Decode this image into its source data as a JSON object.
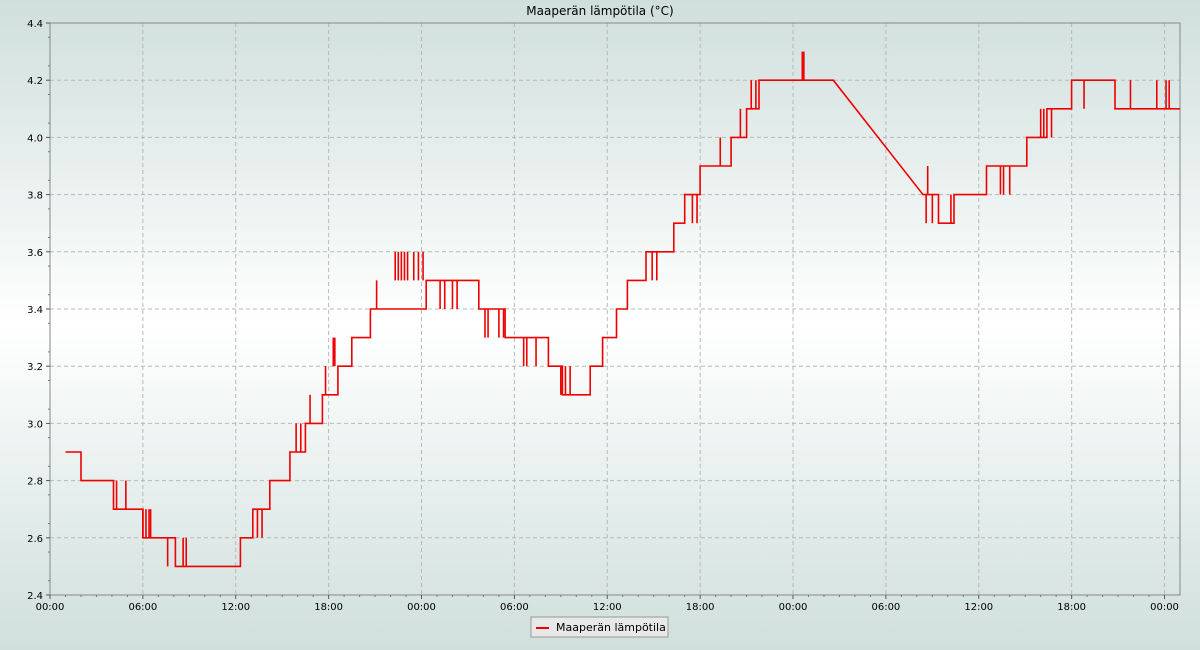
{
  "chart_data": {
    "type": "line",
    "title": "Maaperän lämpötila (°C)",
    "xlabel": "",
    "ylabel": "",
    "ylim": [
      2.4,
      4.4
    ],
    "xlim": [
      "00:00",
      "+73h"
    ],
    "grid": true,
    "legend_position": "bottom-center",
    "y_ticks": [
      "2.4",
      "2.6",
      "2.8",
      "3.0",
      "3.2",
      "3.4",
      "3.6",
      "3.8",
      "4.0",
      "4.2",
      "4.4"
    ],
    "x_ticks": [
      "00:00",
      "06:00",
      "12:00",
      "18:00",
      "00:00",
      "06:00",
      "12:00",
      "18:00",
      "00:00",
      "06:00",
      "12:00",
      "18:00",
      "00:00"
    ],
    "series": [
      {
        "name": "Maaperän lämpötila",
        "color": "#ee0000",
        "x_hours": [
          1.0,
          2.0,
          2.0,
          4.1,
          4.1,
          6.0,
          6.0,
          6.6,
          6.6,
          7.6,
          8.1,
          8.1,
          12.3,
          12.3,
          13.1,
          13.1,
          14.2,
          14.2,
          15.5,
          15.5,
          16.5,
          16.5,
          17.6,
          17.6,
          18.6,
          18.6,
          19.5,
          19.5,
          20.7,
          20.7,
          24.3,
          24.3,
          25.6,
          25.6,
          27.7,
          27.7,
          29.4,
          29.4,
          32.2,
          32.2,
          33.1,
          33.1,
          34.0,
          34.0,
          34.9,
          34.9,
          35.7,
          35.7,
          36.6,
          36.6,
          37.3,
          37.3,
          38.5,
          38.5,
          40.3,
          40.3,
          41.0,
          41.0,
          42.0,
          42.0,
          44.0,
          44.0,
          45.0,
          45.0,
          45.8,
          45.8,
          47.4,
          47.4,
          48.9,
          48.9,
          49.3,
          49.3,
          50.6,
          56.4,
          56.4,
          57.4,
          57.4,
          58.4,
          58.4,
          60.5,
          60.5,
          61.8,
          61.8,
          63.1,
          63.1,
          64.4,
          64.4,
          66.0,
          66.0,
          68.8,
          68.8,
          70.2,
          70.2,
          73.0
        ],
        "y_values": [
          2.9,
          2.9,
          2.8,
          2.8,
          2.7,
          2.7,
          2.6,
          2.6,
          2.6,
          2.6,
          2.6,
          2.5,
          2.5,
          2.6,
          2.6,
          2.7,
          2.7,
          2.8,
          2.8,
          2.9,
          2.9,
          3.0,
          3.0,
          3.1,
          3.1,
          3.2,
          3.2,
          3.3,
          3.3,
          3.4,
          3.4,
          3.5,
          3.5,
          3.5,
          3.5,
          3.4,
          3.4,
          3.3,
          3.3,
          3.2,
          3.2,
          3.1,
          3.1,
          3.1,
          3.1,
          3.2,
          3.2,
          3.3,
          3.3,
          3.4,
          3.4,
          3.5,
          3.5,
          3.6,
          3.6,
          3.7,
          3.7,
          3.8,
          3.8,
          3.9,
          3.9,
          4.0,
          4.0,
          4.1,
          4.1,
          4.2,
          4.2,
          4.2,
          4.2,
          4.2,
          4.2,
          4.2,
          4.2,
          3.8,
          3.8,
          3.8,
          3.7,
          3.7,
          3.8,
          3.8,
          3.9,
          3.9,
          3.9,
          3.9,
          4.0,
          4.0,
          4.1,
          4.1,
          4.2,
          4.2,
          4.1,
          4.1,
          4.1,
          4.1
        ],
        "spikes": [
          {
            "x": 4.3,
            "y1": 2.7,
            "y2": 2.8
          },
          {
            "x": 4.9,
            "y1": 2.7,
            "y2": 2.8
          },
          {
            "x": 6.0,
            "y1": 2.6,
            "y2": 2.7
          },
          {
            "x": 6.2,
            "y1": 2.6,
            "y2": 2.7
          },
          {
            "x": 6.4,
            "y1": 2.6,
            "y2": 2.7
          },
          {
            "x": 6.5,
            "y1": 2.6,
            "y2": 2.7
          },
          {
            "x": 7.6,
            "y1": 2.5,
            "y2": 2.6
          },
          {
            "x": 8.6,
            "y1": 2.5,
            "y2": 2.6
          },
          {
            "x": 8.8,
            "y1": 2.5,
            "y2": 2.6
          },
          {
            "x": 13.4,
            "y1": 2.6,
            "y2": 2.7
          },
          {
            "x": 13.7,
            "y1": 2.6,
            "y2": 2.7
          },
          {
            "x": 15.9,
            "y1": 2.9,
            "y2": 3.0
          },
          {
            "x": 16.2,
            "y1": 2.9,
            "y2": 3.0
          },
          {
            "x": 16.8,
            "y1": 3.0,
            "y2": 3.1
          },
          {
            "x": 17.8,
            "y1": 3.1,
            "y2": 3.2
          },
          {
            "x": 18.3,
            "y1": 3.2,
            "y2": 3.3
          },
          {
            "x": 18.4,
            "y1": 3.2,
            "y2": 3.3
          },
          {
            "x": 21.1,
            "y1": 3.4,
            "y2": 3.5
          },
          {
            "x": 22.3,
            "y1": 3.5,
            "y2": 3.6
          },
          {
            "x": 22.5,
            "y1": 3.5,
            "y2": 3.6
          },
          {
            "x": 22.7,
            "y1": 3.5,
            "y2": 3.6
          },
          {
            "x": 22.9,
            "y1": 3.5,
            "y2": 3.6
          },
          {
            "x": 23.1,
            "y1": 3.5,
            "y2": 3.6
          },
          {
            "x": 23.5,
            "y1": 3.5,
            "y2": 3.6
          },
          {
            "x": 23.8,
            "y1": 3.5,
            "y2": 3.6
          },
          {
            "x": 24.1,
            "y1": 3.5,
            "y2": 3.6
          },
          {
            "x": 25.2,
            "y1": 3.4,
            "y2": 3.5
          },
          {
            "x": 25.5,
            "y1": 3.4,
            "y2": 3.5
          },
          {
            "x": 26.0,
            "y1": 3.4,
            "y2": 3.5
          },
          {
            "x": 26.3,
            "y1": 3.4,
            "y2": 3.5
          },
          {
            "x": 28.1,
            "y1": 3.3,
            "y2": 3.4
          },
          {
            "x": 28.3,
            "y1": 3.3,
            "y2": 3.4
          },
          {
            "x": 29.0,
            "y1": 3.3,
            "y2": 3.4
          },
          {
            "x": 29.3,
            "y1": 3.3,
            "y2": 3.4
          },
          {
            "x": 30.6,
            "y1": 3.2,
            "y2": 3.3
          },
          {
            "x": 30.8,
            "y1": 3.2,
            "y2": 3.3
          },
          {
            "x": 31.4,
            "y1": 3.2,
            "y2": 3.3
          },
          {
            "x": 33.0,
            "y1": 3.1,
            "y2": 3.2
          },
          {
            "x": 33.3,
            "y1": 3.1,
            "y2": 3.2
          },
          {
            "x": 33.6,
            "y1": 3.1,
            "y2": 3.2
          },
          {
            "x": 38.9,
            "y1": 3.5,
            "y2": 3.6
          },
          {
            "x": 39.2,
            "y1": 3.5,
            "y2": 3.6
          },
          {
            "x": 41.5,
            "y1": 3.7,
            "y2": 3.8
          },
          {
            "x": 41.8,
            "y1": 3.7,
            "y2": 3.8
          },
          {
            "x": 43.3,
            "y1": 3.9,
            "y2": 4.0
          },
          {
            "x": 44.6,
            "y1": 4.0,
            "y2": 4.1
          },
          {
            "x": 45.3,
            "y1": 4.1,
            "y2": 4.2
          },
          {
            "x": 45.6,
            "y1": 4.1,
            "y2": 4.2
          },
          {
            "x": 48.6,
            "y1": 4.2,
            "y2": 4.3
          },
          {
            "x": 48.7,
            "y1": 4.2,
            "y2": 4.3
          },
          {
            "x": 56.6,
            "y1": 3.7,
            "y2": 3.8
          },
          {
            "x": 56.7,
            "y1": 3.8,
            "y2": 3.9
          },
          {
            "x": 57.0,
            "y1": 3.7,
            "y2": 3.8
          },
          {
            "x": 58.2,
            "y1": 3.7,
            "y2": 3.8
          },
          {
            "x": 61.4,
            "y1": 3.8,
            "y2": 3.9
          },
          {
            "x": 61.6,
            "y1": 3.8,
            "y2": 3.9
          },
          {
            "x": 62.0,
            "y1": 3.8,
            "y2": 3.9
          },
          {
            "x": 64.0,
            "y1": 4.0,
            "y2": 4.1
          },
          {
            "x": 64.2,
            "y1": 4.0,
            "y2": 4.1
          },
          {
            "x": 64.7,
            "y1": 4.0,
            "y2": 4.1
          },
          {
            "x": 66.8,
            "y1": 4.1,
            "y2": 4.2
          },
          {
            "x": 69.8,
            "y1": 4.1,
            "y2": 4.2
          },
          {
            "x": 71.5,
            "y1": 4.1,
            "y2": 4.2
          },
          {
            "x": 72.1,
            "y1": 4.1,
            "y2": 4.2
          },
          {
            "x": 72.3,
            "y1": 4.1,
            "y2": 4.2
          }
        ]
      }
    ]
  }
}
